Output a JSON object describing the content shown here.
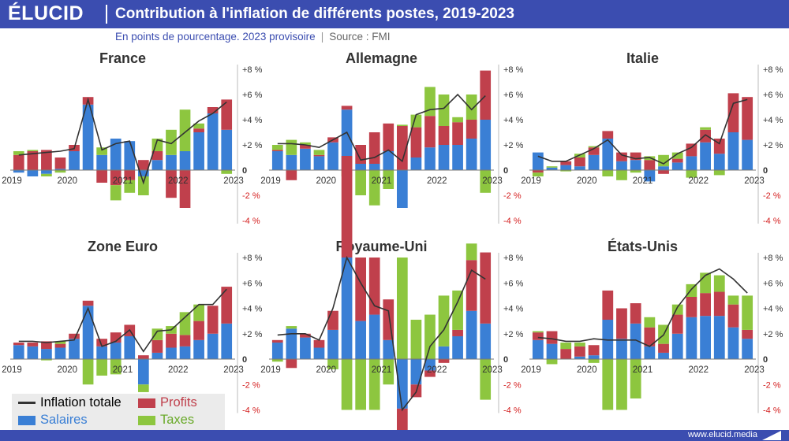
{
  "header": {
    "logo": "ÉLUCID",
    "title": "Contribution à l'inflation de différents postes, 2019-2023",
    "subtitle": "En points de pourcentage. 2023 provisoire",
    "source": "Source : FMI"
  },
  "footer": {
    "website": "www.elucid.media"
  },
  "legend": {
    "inflation_label": "Inflation totale",
    "profits_label": "Profits",
    "salaires_label": "Salaires",
    "taxes_label": "Taxes"
  },
  "colors": {
    "brand": "#3b4db0",
    "salaires": "#3a7fd5",
    "profits": "#c0404c",
    "taxes": "#8dc63f",
    "inflation": "#333333",
    "negative_tick": "#d42020"
  },
  "chart_data": [
    {
      "type": "bar",
      "title": "France",
      "ylim": [
        -4,
        8
      ],
      "yticks": [
        "+8 %",
        "+6 %",
        "+4 %",
        "+2 %",
        "0",
        "-2 %",
        "-4 %"
      ],
      "xticks": [
        "2019",
        "2020",
        "2021",
        "2022",
        "2023"
      ],
      "series": [
        {
          "name": "Salaires",
          "values": [
            -0.2,
            -0.5,
            -0.3,
            0.1,
            1.5,
            5.2,
            1.2,
            2.5,
            2.3,
            -0.5,
            0.8,
            1.2,
            1.5,
            3.0,
            4.5,
            3.2
          ]
        },
        {
          "name": "Profits",
          "values": [
            1.2,
            1.5,
            1.6,
            0.9,
            0.5,
            0.6,
            -1.0,
            -1.2,
            -0.8,
            0.8,
            0.7,
            -2.2,
            -3.0,
            0.3,
            0.5,
            2.4
          ]
        },
        {
          "name": "Taxes",
          "values": [
            0.3,
            0.1,
            -0.2,
            -0.2,
            0.0,
            0.0,
            0.6,
            -1.2,
            -1.0,
            -1.5,
            1.0,
            2.0,
            3.3,
            0.4,
            0.0,
            -0.3
          ]
        }
      ],
      "inflation": [
        1.2,
        1.3,
        1.4,
        1.5,
        1.7,
        5.6,
        1.6,
        2.1,
        2.3,
        -1.0,
        2.4,
        2.1,
        3.0,
        3.9,
        4.5,
        5.4
      ]
    },
    {
      "type": "bar",
      "title": "Allemagne",
      "ylim": [
        -4,
        8
      ],
      "yticks": [
        "+8 %",
        "+6 %",
        "+4 %",
        "+2 %",
        "0",
        "-2 %",
        "-4 %"
      ],
      "xticks": [
        "2019",
        "2020",
        "2021",
        "2022",
        "2023"
      ],
      "series": [
        {
          "name": "Salaires",
          "values": [
            1.5,
            1.2,
            1.7,
            1.1,
            2.2,
            4.8,
            0.5,
            0.5,
            1.5,
            -3.0,
            1.0,
            1.8,
            2.0,
            2.0,
            2.5,
            4.0
          ]
        },
        {
          "name": "Profits",
          "values": [
            0.1,
            -0.8,
            0.3,
            0.1,
            0.4,
            0.3,
            1.5,
            2.5,
            2.2,
            3.5,
            2.4,
            2.5,
            1.5,
            1.8,
            1.5,
            3.9
          ]
        },
        {
          "name": "Taxes",
          "values": [
            0.4,
            1.2,
            0.2,
            0.4,
            0.0,
            -0.5,
            -2.0,
            -2.8,
            -1.5,
            0.1,
            1.0,
            2.3,
            2.5,
            0.4,
            2.0,
            -1.8
          ]
        }
      ],
      "inflation": [
        2.1,
        2.1,
        2.0,
        1.8,
        2.4,
        3.0,
        0.8,
        1.0,
        1.6,
        0.7,
        4.4,
        4.8,
        4.9,
        6.0,
        4.8,
        5.9
      ]
    },
    {
      "type": "bar",
      "title": "Italie",
      "ylim": [
        -4,
        8
      ],
      "yticks": [
        "+8 %",
        "+6 %",
        "+4 %",
        "+2 %",
        "0",
        "-2 %",
        "-4 %"
      ],
      "xticks": [
        "2019",
        "2020",
        "2021",
        "2022",
        "2023"
      ],
      "series": [
        {
          "name": "Salaires",
          "values": [
            1.4,
            0.2,
            0.4,
            0.3,
            1.2,
            2.5,
            0.7,
            0.8,
            -0.9,
            0.3,
            0.6,
            1.1,
            2.2,
            1.3,
            3.0,
            2.4
          ]
        },
        {
          "name": "Profits",
          "values": [
            -0.2,
            0.0,
            0.3,
            0.7,
            0.6,
            0.6,
            0.7,
            0.6,
            0.8,
            -0.3,
            0.3,
            1.0,
            1.0,
            1.2,
            3.1,
            3.4
          ]
        },
        {
          "name": "Taxes",
          "values": [
            -0.3,
            0.1,
            -0.1,
            0.3,
            0.1,
            -0.5,
            -0.8,
            -0.2,
            0.3,
            0.9,
            0.5,
            -0.6,
            0.2,
            -0.4,
            0.0,
            0.0
          ]
        }
      ],
      "inflation": [
        1.1,
        0.7,
        0.7,
        1.2,
        1.7,
        2.4,
        1.2,
        0.9,
        1.0,
        0.5,
        1.3,
        1.8,
        2.8,
        2.1,
        5.3,
        5.6
      ]
    },
    {
      "type": "bar",
      "title": "Zone Euro",
      "ylim": [
        -4,
        8
      ],
      "yticks": [
        "+8 %",
        "+6 %",
        "+4 %",
        "+2 %",
        "0",
        "-2 %",
        "-4 %"
      ],
      "xticks": [
        "2019",
        "2020",
        "2021",
        "2022",
        "2023"
      ],
      "series": [
        {
          "name": "Salaires",
          "values": [
            1.1,
            1.0,
            0.8,
            0.9,
            1.6,
            4.2,
            1.0,
            1.3,
            1.8,
            -2.0,
            0.5,
            0.9,
            1.0,
            1.5,
            2.0,
            2.8
          ]
        },
        {
          "name": "Profits",
          "values": [
            0.2,
            0.3,
            0.6,
            0.3,
            0.4,
            0.4,
            0.6,
            0.8,
            0.9,
            0.3,
            1.0,
            1.1,
            0.9,
            1.5,
            2.2,
            2.9
          ]
        },
        {
          "name": "Taxes",
          "values": [
            0.0,
            0.0,
            -0.1,
            0.2,
            0.0,
            -2.0,
            -1.3,
            -1.2,
            0.0,
            -0.6,
            0.9,
            0.6,
            1.8,
            1.3,
            0.0,
            0.0
          ]
        }
      ],
      "inflation": [
        1.4,
        1.4,
        1.3,
        1.4,
        1.5,
        4.0,
        1.0,
        1.4,
        2.3,
        0.6,
        2.2,
        2.3,
        3.3,
        4.3,
        4.3,
        5.5
      ]
    },
    {
      "type": "bar",
      "title": "Royaume-Uni",
      "ylim": [
        -4,
        8
      ],
      "yticks": [
        "+8 %",
        "+6 %",
        "+4 %",
        "+2 %",
        "0",
        "-2 %",
        "-4 %"
      ],
      "xticks": [
        "2019",
        "2020",
        "2021",
        "2022",
        "2023"
      ],
      "series": [
        {
          "name": "Salaires",
          "values": [
            1.3,
            2.4,
            1.7,
            0.9,
            2.3,
            8.0,
            3.0,
            3.5,
            1.5,
            -3.9,
            -2.0,
            -0.9,
            1.0,
            1.8,
            3.8,
            2.8
          ]
        },
        {
          "name": "Profits",
          "values": [
            0.2,
            -0.7,
            0.3,
            0.6,
            1.5,
            8.0,
            5.0,
            4.5,
            3.2,
            -2.5,
            -1.0,
            -0.5,
            -0.3,
            0.5,
            4.0,
            5.6
          ]
        },
        {
          "name": "Taxes",
          "values": [
            -0.2,
            0.2,
            0.0,
            0.0,
            -0.8,
            -4.0,
            -4.0,
            -4.0,
            -2.0,
            8.0,
            3.1,
            3.5,
            4.0,
            3.1,
            1.3,
            -3.2
          ]
        }
      ],
      "inflation": [
        1.9,
        2.0,
        2.0,
        1.5,
        4.0,
        8.0,
        6.0,
        4.2,
        3.8,
        -4.0,
        -2.6,
        1.0,
        2.3,
        4.5,
        7.0,
        6.3
      ]
    },
    {
      "type": "bar",
      "title": "États-Unis",
      "ylim": [
        -4,
        8
      ],
      "yticks": [
        "+8 %",
        "+6 %",
        "+4 %",
        "+2 %",
        "0",
        "-2 %",
        "-4 %"
      ],
      "xticks": [
        "2019",
        "2020",
        "2021",
        "2022",
        "2023"
      ],
      "series": [
        {
          "name": "Salaires",
          "values": [
            1.5,
            1.2,
            0.0,
            0.2,
            0.3,
            3.1,
            1.6,
            2.8,
            1.0,
            0.5,
            2.0,
            3.3,
            3.4,
            3.4,
            2.5,
            1.6
          ]
        },
        {
          "name": "Profits",
          "values": [
            0.6,
            1.0,
            0.8,
            0.8,
            0.8,
            2.3,
            2.4,
            1.6,
            1.5,
            0.7,
            1.5,
            1.6,
            1.8,
            1.9,
            1.8,
            0.7
          ]
        },
        {
          "name": "Taxes",
          "values": [
            0.1,
            -0.4,
            0.5,
            0.3,
            -0.3,
            -4.0,
            -4.0,
            -3.1,
            0.8,
            1.5,
            0.8,
            1.0,
            1.6,
            1.3,
            0.7,
            2.7
          ]
        }
      ],
      "inflation": [
        1.7,
        1.6,
        1.4,
        1.4,
        1.6,
        1.5,
        1.5,
        1.5,
        1.0,
        1.9,
        4.1,
        5.5,
        6.6,
        7.1,
        6.3,
        5.2
      ]
    }
  ]
}
